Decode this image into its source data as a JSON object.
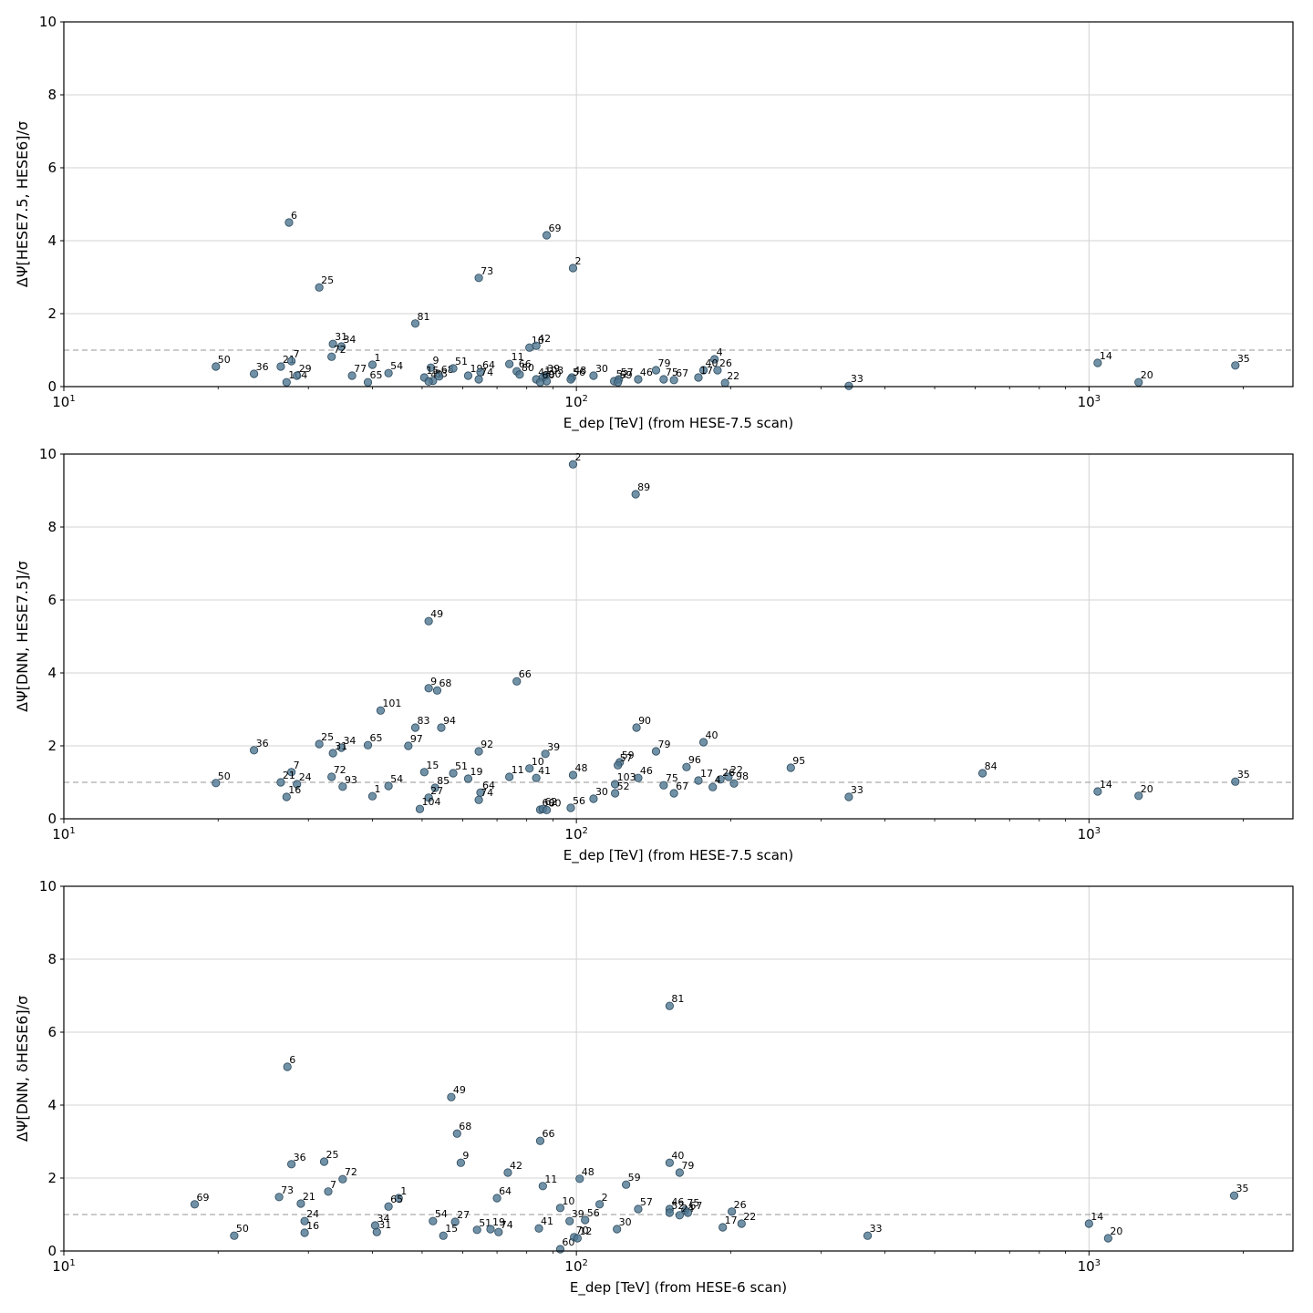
{
  "chart_data": [
    {
      "type": "scatter",
      "ylabel": "ΔΨ[HESE7.5, HESE6]/σ",
      "xlabel": "E_dep [TeV] (from HESE-7.5 scan)",
      "xscale": "log",
      "xlim": [
        10,
        2500
      ],
      "ylim": [
        0,
        10
      ],
      "yticks": [
        "0",
        "2",
        "4",
        "6",
        "8",
        "10"
      ],
      "xticks": [
        "10^1",
        "10^2",
        "10^3"
      ],
      "grid": true,
      "threshold": 1,
      "points": [
        {
          "label": "6",
          "x": 27.5,
          "y": 4.5
        },
        {
          "label": "69",
          "x": 87.5,
          "y": 4.15
        },
        {
          "label": "2",
          "x": 98.5,
          "y": 3.25
        },
        {
          "label": "73",
          "x": 64.5,
          "y": 2.98
        },
        {
          "label": "25",
          "x": 31.5,
          "y": 2.72
        },
        {
          "label": "81",
          "x": 48.5,
          "y": 1.73
        },
        {
          "label": "31",
          "x": 33.5,
          "y": 1.17
        },
        {
          "label": "34",
          "x": 34.8,
          "y": 1.1
        },
        {
          "label": "72",
          "x": 33.3,
          "y": 0.82
        },
        {
          "label": "10",
          "x": 81,
          "y": 1.07
        },
        {
          "label": "42",
          "x": 83.5,
          "y": 1.12
        },
        {
          "label": "50",
          "x": 19.8,
          "y": 0.55
        },
        {
          "label": "36",
          "x": 23.5,
          "y": 0.35
        },
        {
          "label": "21",
          "x": 26.5,
          "y": 0.55
        },
        {
          "label": "7",
          "x": 27.8,
          "y": 0.7
        },
        {
          "label": "104",
          "x": 27.2,
          "y": 0.12
        },
        {
          "label": "29",
          "x": 28.5,
          "y": 0.3
        },
        {
          "label": "77",
          "x": 36.5,
          "y": 0.3
        },
        {
          "label": "1",
          "x": 40,
          "y": 0.6
        },
        {
          "label": "65",
          "x": 39.2,
          "y": 0.12
        },
        {
          "label": "54",
          "x": 43,
          "y": 0.37
        },
        {
          "label": "9",
          "x": 52,
          "y": 0.52
        },
        {
          "label": "15",
          "x": 50.5,
          "y": 0.25
        },
        {
          "label": "83",
          "x": 52.5,
          "y": 0.16
        },
        {
          "label": "49",
          "x": 51.5,
          "y": 0.14
        },
        {
          "label": "68",
          "x": 54,
          "y": 0.28
        },
        {
          "label": "51",
          "x": 57.5,
          "y": 0.5
        },
        {
          "label": "19",
          "x": 61.5,
          "y": 0.3
        },
        {
          "label": "64",
          "x": 65,
          "y": 0.4
        },
        {
          "label": "74",
          "x": 64.5,
          "y": 0.2
        },
        {
          "label": "11",
          "x": 74,
          "y": 0.62
        },
        {
          "label": "66",
          "x": 76.5,
          "y": 0.42
        },
        {
          "label": "80",
          "x": 77.5,
          "y": 0.33
        },
        {
          "label": "41",
          "x": 83.5,
          "y": 0.2
        },
        {
          "label": "39",
          "x": 87,
          "y": 0.3
        },
        {
          "label": "103",
          "x": 86,
          "y": 0.25
        },
        {
          "label": "90",
          "x": 87.5,
          "y": 0.15
        },
        {
          "label": "60",
          "x": 85,
          "y": 0.12
        },
        {
          "label": "48",
          "x": 98,
          "y": 0.25
        },
        {
          "label": "56",
          "x": 97.5,
          "y": 0.2
        },
        {
          "label": "30",
          "x": 108,
          "y": 0.3
        },
        {
          "label": "52",
          "x": 118.5,
          "y": 0.15
        },
        {
          "label": "57",
          "x": 121,
          "y": 0.2
        },
        {
          "label": "59",
          "x": 120.5,
          "y": 0.12
        },
        {
          "label": "79",
          "x": 143,
          "y": 0.45
        },
        {
          "label": "46",
          "x": 132,
          "y": 0.2
        },
        {
          "label": "75",
          "x": 148,
          "y": 0.2
        },
        {
          "label": "67",
          "x": 155,
          "y": 0.18
        },
        {
          "label": "4",
          "x": 186,
          "y": 0.75
        },
        {
          "label": "40",
          "x": 177,
          "y": 0.45
        },
        {
          "label": "26",
          "x": 188.5,
          "y": 0.45
        },
        {
          "label": "17",
          "x": 173,
          "y": 0.25
        },
        {
          "label": "22",
          "x": 195,
          "y": 0.1
        },
        {
          "label": "33",
          "x": 340,
          "y": 0.02
        },
        {
          "label": "14",
          "x": 1040,
          "y": 0.65
        },
        {
          "label": "20",
          "x": 1250,
          "y": 0.12
        },
        {
          "label": "35",
          "x": 1930,
          "y": 0.58
        }
      ]
    },
    {
      "type": "scatter",
      "ylabel": "ΔΨ[DNN, HESE7.5]/σ",
      "xlabel": "E_dep [TeV] (from HESE-7.5 scan)",
      "xscale": "log",
      "xlim": [
        10,
        2500
      ],
      "ylim": [
        0,
        10
      ],
      "yticks": [
        "0",
        "2",
        "4",
        "6",
        "8",
        "10"
      ],
      "xticks": [
        "10^1",
        "10^2",
        "10^3"
      ],
      "grid": true,
      "threshold": 1,
      "points": [
        {
          "label": "2",
          "x": 98.5,
          "y": 9.72
        },
        {
          "label": "89",
          "x": 130.5,
          "y": 8.9
        },
        {
          "label": "49",
          "x": 51.5,
          "y": 5.42
        },
        {
          "label": "66",
          "x": 76.5,
          "y": 3.77
        },
        {
          "label": "9",
          "x": 51.5,
          "y": 3.58
        },
        {
          "label": "68",
          "x": 53.5,
          "y": 3.52
        },
        {
          "label": "101",
          "x": 41.5,
          "y": 2.97
        },
        {
          "label": "83",
          "x": 48.5,
          "y": 2.5
        },
        {
          "label": "94",
          "x": 54.5,
          "y": 2.5
        },
        {
          "label": "90",
          "x": 131,
          "y": 2.5
        },
        {
          "label": "40",
          "x": 177,
          "y": 2.1
        },
        {
          "label": "25",
          "x": 31.5,
          "y": 2.05
        },
        {
          "label": "65",
          "x": 39.2,
          "y": 2.02
        },
        {
          "label": "97",
          "x": 47,
          "y": 2.0
        },
        {
          "label": "34",
          "x": 34.8,
          "y": 1.95
        },
        {
          "label": "31",
          "x": 33.5,
          "y": 1.8
        },
        {
          "label": "36",
          "x": 23.5,
          "y": 1.88
        },
        {
          "label": "92",
          "x": 64.5,
          "y": 1.85
        },
        {
          "label": "39",
          "x": 87,
          "y": 1.78
        },
        {
          "label": "79",
          "x": 143,
          "y": 1.85
        },
        {
          "label": "59",
          "x": 121.5,
          "y": 1.55
        },
        {
          "label": "57",
          "x": 120.5,
          "y": 1.47
        },
        {
          "label": "96",
          "x": 164,
          "y": 1.42
        },
        {
          "label": "95",
          "x": 262,
          "y": 1.4
        },
        {
          "label": "84",
          "x": 620,
          "y": 1.25
        },
        {
          "label": "7",
          "x": 27.8,
          "y": 1.28
        },
        {
          "label": "15",
          "x": 50.5,
          "y": 1.28
        },
        {
          "label": "51",
          "x": 57.5,
          "y": 1.25
        },
        {
          "label": "10",
          "x": 81,
          "y": 1.38
        },
        {
          "label": "48",
          "x": 98.5,
          "y": 1.2
        },
        {
          "label": "11",
          "x": 74,
          "y": 1.15
        },
        {
          "label": "72",
          "x": 33.3,
          "y": 1.15
        },
        {
          "label": "19",
          "x": 61.5,
          "y": 1.1
        },
        {
          "label": "41",
          "x": 83.5,
          "y": 1.12
        },
        {
          "label": "46",
          "x": 132,
          "y": 1.12
        },
        {
          "label": "22",
          "x": 198,
          "y": 1.15
        },
        {
          "label": "26",
          "x": 191,
          "y": 1.08
        },
        {
          "label": "17",
          "x": 173,
          "y": 1.05
        },
        {
          "label": "98",
          "x": 203,
          "y": 0.97
        },
        {
          "label": "4",
          "x": 184.5,
          "y": 0.87
        },
        {
          "label": "103",
          "x": 119,
          "y": 0.95
        },
        {
          "label": "75",
          "x": 148,
          "y": 0.92
        },
        {
          "label": "21",
          "x": 26.5,
          "y": 1.0
        },
        {
          "label": "24",
          "x": 28.5,
          "y": 0.95
        },
        {
          "label": "50",
          "x": 19.8,
          "y": 0.98
        },
        {
          "label": "54",
          "x": 43,
          "y": 0.9
        },
        {
          "label": "93",
          "x": 35,
          "y": 0.88
        },
        {
          "label": "85",
          "x": 53,
          "y": 0.85
        },
        {
          "label": "64",
          "x": 65,
          "y": 0.72
        },
        {
          "label": "74",
          "x": 64.5,
          "y": 0.52
        },
        {
          "label": "27",
          "x": 51.5,
          "y": 0.58
        },
        {
          "label": "52",
          "x": 119,
          "y": 0.7
        },
        {
          "label": "67",
          "x": 155,
          "y": 0.7
        },
        {
          "label": "30",
          "x": 108,
          "y": 0.55
        },
        {
          "label": "16",
          "x": 27.2,
          "y": 0.6
        },
        {
          "label": "1",
          "x": 40,
          "y": 0.62
        },
        {
          "label": "33",
          "x": 340,
          "y": 0.6
        },
        {
          "label": "14",
          "x": 1040,
          "y": 0.75
        },
        {
          "label": "20",
          "x": 1250,
          "y": 0.63
        },
        {
          "label": "35",
          "x": 1930,
          "y": 1.02
        },
        {
          "label": "104",
          "x": 49.5,
          "y": 0.27
        },
        {
          "label": "56",
          "x": 97.5,
          "y": 0.3
        },
        {
          "label": "60",
          "x": 85,
          "y": 0.25
        },
        {
          "label": "62",
          "x": 86,
          "y": 0.27
        },
        {
          "label": "80",
          "x": 87.5,
          "y": 0.24
        }
      ]
    },
    {
      "type": "scatter",
      "ylabel": "ΔΨ[DNN, δHESE6]/σ",
      "xlabel": "E_dep [TeV] (from HESE-6 scan)",
      "xscale": "log",
      "xlim": [
        10,
        2500
      ],
      "ylim": [
        0,
        10
      ],
      "yticks": [
        "0",
        "2",
        "4",
        "6",
        "8",
        "10"
      ],
      "xticks": [
        "10^1",
        "10^2",
        "10^3"
      ],
      "grid": true,
      "threshold": 1,
      "points": [
        {
          "label": "81",
          "x": 152,
          "y": 6.72
        },
        {
          "label": "6",
          "x": 27.3,
          "y": 5.05
        },
        {
          "label": "49",
          "x": 57,
          "y": 4.22
        },
        {
          "label": "68",
          "x": 58.5,
          "y": 3.22
        },
        {
          "label": "66",
          "x": 85,
          "y": 3.02
        },
        {
          "label": "36",
          "x": 27.8,
          "y": 2.38
        },
        {
          "label": "25",
          "x": 32.2,
          "y": 2.45
        },
        {
          "label": "40",
          "x": 152,
          "y": 2.42
        },
        {
          "label": "9",
          "x": 59.5,
          "y": 2.42
        },
        {
          "label": "42",
          "x": 73.5,
          "y": 2.15
        },
        {
          "label": "79",
          "x": 159,
          "y": 2.15
        },
        {
          "label": "48",
          "x": 101.5,
          "y": 1.98
        },
        {
          "label": "72",
          "x": 35,
          "y": 1.97
        },
        {
          "label": "59",
          "x": 125,
          "y": 1.82
        },
        {
          "label": "11",
          "x": 86,
          "y": 1.78
        },
        {
          "label": "35",
          "x": 1920,
          "y": 1.52
        },
        {
          "label": "73",
          "x": 26.3,
          "y": 1.48
        },
        {
          "label": "64",
          "x": 70,
          "y": 1.45
        },
        {
          "label": "1",
          "x": 45,
          "y": 1.45
        },
        {
          "label": "7",
          "x": 32.8,
          "y": 1.63
        },
        {
          "label": "21",
          "x": 29,
          "y": 1.3
        },
        {
          "label": "69",
          "x": 18,
          "y": 1.28
        },
        {
          "label": "65",
          "x": 43,
          "y": 1.22
        },
        {
          "label": "2",
          "x": 111,
          "y": 1.28
        },
        {
          "label": "10",
          "x": 93,
          "y": 1.18
        },
        {
          "label": "57",
          "x": 132,
          "y": 1.15
        },
        {
          "label": "46",
          "x": 152,
          "y": 1.15
        },
        {
          "label": "75",
          "x": 163,
          "y": 1.12
        },
        {
          "label": "52",
          "x": 152,
          "y": 1.05
        },
        {
          "label": "24",
          "x": 159,
          "y": 0.98
        },
        {
          "label": "67",
          "x": 165,
          "y": 1.05
        },
        {
          "label": "26",
          "x": 201,
          "y": 1.08
        },
        {
          "label": "39",
          "x": 97,
          "y": 0.82
        },
        {
          "label": "56",
          "x": 104,
          "y": 0.85
        },
        {
          "label": "54",
          "x": 52.5,
          "y": 0.82
        },
        {
          "label": "27",
          "x": 58,
          "y": 0.8
        },
        {
          "label": "24",
          "x": 29.5,
          "y": 0.82
        },
        {
          "label": "34",
          "x": 40.5,
          "y": 0.7
        },
        {
          "label": "31",
          "x": 40.8,
          "y": 0.52
        },
        {
          "label": "16",
          "x": 29.5,
          "y": 0.5
        },
        {
          "label": "50",
          "x": 21.5,
          "y": 0.42
        },
        {
          "label": "15",
          "x": 55,
          "y": 0.42
        },
        {
          "label": "51",
          "x": 64,
          "y": 0.58
        },
        {
          "label": "19",
          "x": 68,
          "y": 0.6
        },
        {
          "label": "74",
          "x": 70.5,
          "y": 0.52
        },
        {
          "label": "41",
          "x": 84.5,
          "y": 0.62
        },
        {
          "label": "30",
          "x": 120,
          "y": 0.6
        },
        {
          "label": "17",
          "x": 193,
          "y": 0.65
        },
        {
          "label": "22",
          "x": 210,
          "y": 0.75
        },
        {
          "label": "14",
          "x": 1000,
          "y": 0.75
        },
        {
          "label": "20",
          "x": 1090,
          "y": 0.35
        },
        {
          "label": "33",
          "x": 370,
          "y": 0.42
        },
        {
          "label": "60",
          "x": 93,
          "y": 0.05
        },
        {
          "label": "70",
          "x": 99,
          "y": 0.38
        },
        {
          "label": "12",
          "x": 100.5,
          "y": 0.35
        }
      ]
    }
  ]
}
